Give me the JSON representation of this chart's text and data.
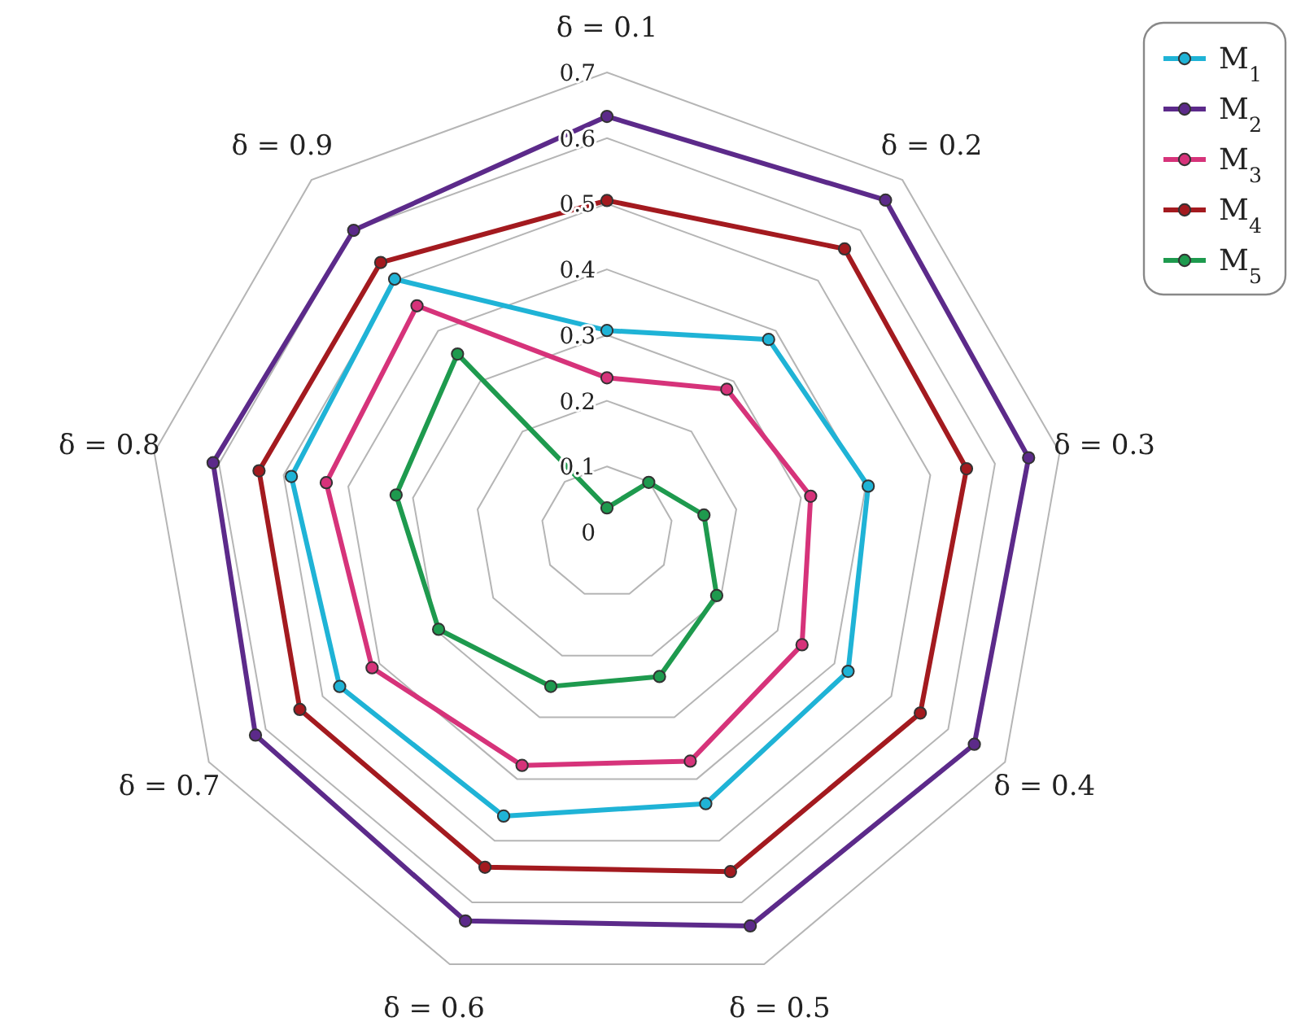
{
  "chart_data": {
    "type": "radar",
    "categories": [
      "δ = 0.1",
      "δ = 0.2",
      "δ = 0.3",
      "δ = 0.4",
      "δ = 0.5",
      "δ = 0.6",
      "δ = 0.7",
      "δ = 0.8",
      "δ = 0.9"
    ],
    "ylim": [
      0,
      0.7
    ],
    "yticks": [
      0,
      0.1,
      0.2,
      0.3,
      0.4,
      0.5,
      0.6,
      0.7
    ],
    "grid": true,
    "legend": "top right",
    "marker": "circle",
    "series": [
      {
        "name": "M$_{1}$",
        "color": "#1fb3d6",
        "values": [
          0.307,
          0.383,
          0.404,
          0.424,
          0.44,
          0.46,
          0.47,
          0.488,
          0.503
        ]
      },
      {
        "name": "M$_{2}$",
        "color": "#5c2a8a",
        "values": [
          0.633,
          0.66,
          0.652,
          0.646,
          0.638,
          0.63,
          0.618,
          0.609,
          0.6
        ]
      },
      {
        "name": "M$_{3}$",
        "color": "#d6337a",
        "values": [
          0.235,
          0.284,
          0.315,
          0.343,
          0.371,
          0.378,
          0.413,
          0.434,
          0.45
        ]
      },
      {
        "name": "M$_{4}$",
        "color": "#a31a1f",
        "values": [
          0.505,
          0.563,
          0.556,
          0.551,
          0.55,
          0.543,
          0.54,
          0.538,
          0.536
        ]
      },
      {
        "name": "M$_{5}$",
        "color": "#1e9a4e",
        "values": [
          0.037,
          0.099,
          0.15,
          0.193,
          0.234,
          0.25,
          0.296,
          0.326,
          0.354
        ]
      }
    ]
  }
}
